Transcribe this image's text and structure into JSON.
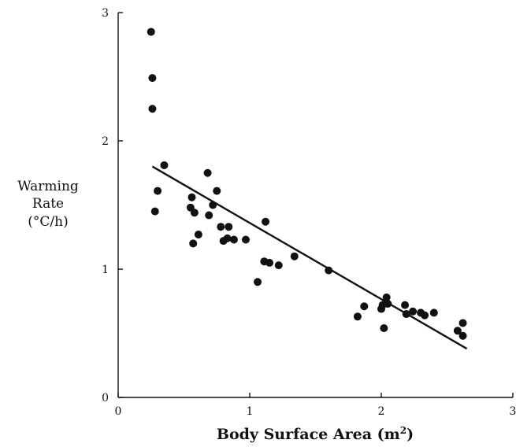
{
  "chart_data": {
    "type": "scatter",
    "title": "",
    "xlabel": "Body Surface Area (m",
    "xlabel_superscript": "2",
    "xlabel_suffix": ")",
    "ylabel_lines": [
      "Warming",
      "Rate",
      "(°C/h)"
    ],
    "xlim": [
      0,
      3
    ],
    "ylim": [
      0,
      3
    ],
    "xticks": [
      0,
      1,
      2,
      3
    ],
    "yticks": [
      0,
      1,
      2,
      3
    ],
    "xtick_labels": [
      "0",
      "1",
      "2",
      "3"
    ],
    "ytick_labels": [
      "0",
      "1",
      "2",
      "3"
    ],
    "grid": false,
    "legend": false,
    "trendline": {
      "x": [
        0.26,
        2.65
      ],
      "y": [
        1.8,
        0.38
      ]
    },
    "points": [
      {
        "x": 0.25,
        "y": 2.85
      },
      {
        "x": 0.26,
        "y": 2.49
      },
      {
        "x": 0.26,
        "y": 2.25
      },
      {
        "x": 0.35,
        "y": 1.81
      },
      {
        "x": 0.3,
        "y": 1.61
      },
      {
        "x": 0.28,
        "y": 1.45
      },
      {
        "x": 0.55,
        "y": 1.48
      },
      {
        "x": 0.56,
        "y": 1.56
      },
      {
        "x": 0.58,
        "y": 1.44
      },
      {
        "x": 0.57,
        "y": 1.2
      },
      {
        "x": 0.61,
        "y": 1.27
      },
      {
        "x": 0.68,
        "y": 1.75
      },
      {
        "x": 0.69,
        "y": 1.42
      },
      {
        "x": 0.72,
        "y": 1.5
      },
      {
        "x": 0.75,
        "y": 1.61
      },
      {
        "x": 0.78,
        "y": 1.33
      },
      {
        "x": 0.8,
        "y": 1.22
      },
      {
        "x": 0.83,
        "y": 1.24
      },
      {
        "x": 0.84,
        "y": 1.33
      },
      {
        "x": 0.88,
        "y": 1.23
      },
      {
        "x": 0.97,
        "y": 1.23
      },
      {
        "x": 1.06,
        "y": 0.9
      },
      {
        "x": 1.11,
        "y": 1.06
      },
      {
        "x": 1.12,
        "y": 1.37
      },
      {
        "x": 1.15,
        "y": 1.05
      },
      {
        "x": 1.22,
        "y": 1.03
      },
      {
        "x": 1.34,
        "y": 1.1
      },
      {
        "x": 1.6,
        "y": 0.99
      },
      {
        "x": 1.82,
        "y": 0.63
      },
      {
        "x": 1.87,
        "y": 0.71
      },
      {
        "x": 2.0,
        "y": 0.69
      },
      {
        "x": 2.01,
        "y": 0.72
      },
      {
        "x": 2.02,
        "y": 0.54
      },
      {
        "x": 2.04,
        "y": 0.78
      },
      {
        "x": 2.05,
        "y": 0.73
      },
      {
        "x": 2.18,
        "y": 0.72
      },
      {
        "x": 2.19,
        "y": 0.65
      },
      {
        "x": 2.24,
        "y": 0.67
      },
      {
        "x": 2.3,
        "y": 0.66
      },
      {
        "x": 2.33,
        "y": 0.64
      },
      {
        "x": 2.4,
        "y": 0.66
      },
      {
        "x": 2.58,
        "y": 0.52
      },
      {
        "x": 2.62,
        "y": 0.58
      },
      {
        "x": 2.62,
        "y": 0.48
      }
    ],
    "colors": {
      "marker": "#111111",
      "line": "#111111",
      "axis": "#111111"
    }
  }
}
